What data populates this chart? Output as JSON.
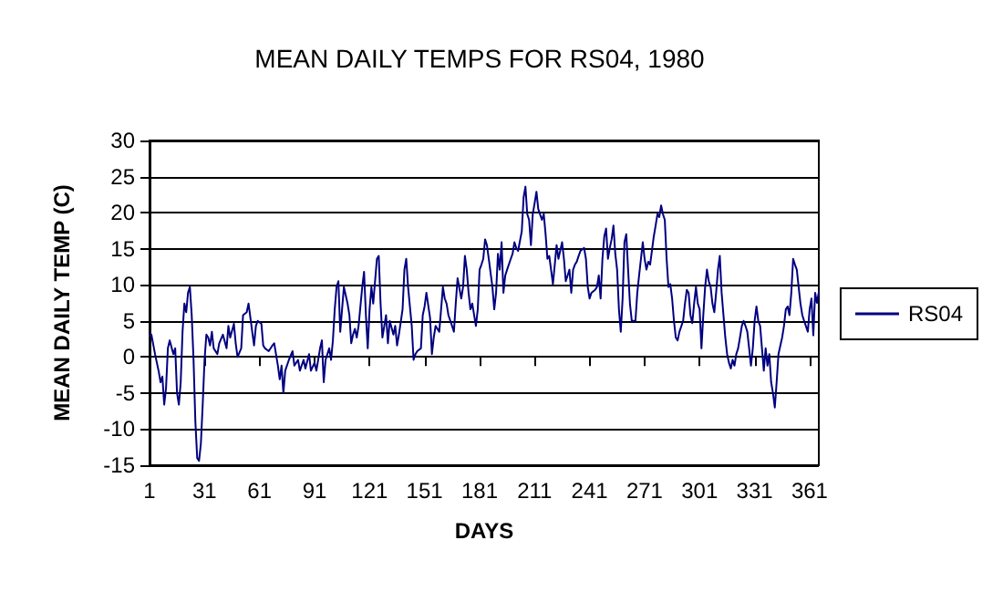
{
  "chart_data": {
    "type": "line",
    "title": "MEAN DAILY TEMPS FOR RS04, 1980",
    "xlabel": "DAYS",
    "ylabel": "MEAN DAILY TEMP (C)",
    "xlim": [
      1,
      366
    ],
    "xticks": [
      1,
      31,
      61,
      91,
      121,
      151,
      181,
      211,
      241,
      271,
      301,
      331,
      361
    ],
    "ylim": [
      -15,
      30
    ],
    "yticks": [
      -15,
      -10,
      -5,
      0,
      5,
      10,
      15,
      20,
      25,
      30
    ],
    "grid": "y",
    "legend": "right",
    "marker": "none",
    "line_style": "solid",
    "series": [
      {
        "name": "RS04",
        "color": "#000080",
        "x": [
          1,
          2,
          4,
          6,
          7,
          8,
          9,
          10,
          11,
          12,
          14,
          15,
          16,
          17,
          18,
          19,
          20,
          21,
          22,
          23,
          24,
          25,
          26,
          27,
          28,
          29,
          30,
          31,
          32,
          33,
          34,
          35,
          36,
          38,
          39,
          41,
          43,
          44,
          45,
          47,
          48,
          49,
          51,
          52,
          54,
          55,
          57,
          58,
          59,
          60,
          62,
          63,
          64,
          66,
          68,
          69,
          71,
          72,
          73,
          74,
          75,
          77,
          79,
          80,
          82,
          83,
          85,
          86,
          88,
          89,
          91,
          92,
          94,
          95,
          96,
          97,
          99,
          100,
          101,
          102,
          103,
          104,
          105,
          107,
          109,
          110,
          111,
          112,
          113,
          114,
          115,
          117,
          118,
          119,
          120,
          121,
          122,
          123,
          125,
          126,
          127,
          128,
          130,
          131,
          132,
          134,
          135,
          136,
          137,
          139,
          140,
          141,
          142,
          144,
          145,
          146,
          147,
          149,
          150,
          151,
          152,
          154,
          155,
          156,
          157,
          159,
          160,
          161,
          162,
          163,
          164,
          166,
          167,
          168,
          169,
          171,
          172,
          173,
          174,
          175,
          176,
          177,
          179,
          180,
          181,
          182,
          183,
          184,
          185,
          186,
          188,
          189,
          190,
          191,
          192,
          193,
          194,
          195,
          196,
          198,
          199,
          200,
          201,
          202,
          204,
          205,
          206,
          207,
          208,
          209,
          210,
          211,
          212,
          213,
          215,
          216,
          217,
          218,
          219,
          221,
          222,
          223,
          224,
          226,
          227,
          228,
          229,
          230,
          231,
          232,
          233,
          234,
          235,
          236,
          238,
          239,
          240,
          241,
          242,
          244,
          245,
          246,
          247,
          248,
          249,
          250,
          251,
          252,
          253,
          254,
          255,
          256,
          257,
          258,
          259,
          260,
          261,
          262,
          263,
          264,
          266,
          267,
          268,
          269,
          270,
          271,
          272,
          273,
          274,
          276,
          277,
          278,
          279,
          280,
          281,
          282,
          283,
          284,
          285,
          286,
          287,
          288,
          289,
          290,
          292,
          293,
          294,
          295,
          296,
          297,
          298,
          299,
          300,
          301,
          302,
          303,
          304,
          305,
          306,
          307,
          308,
          309,
          310,
          311,
          312,
          313,
          314,
          315,
          316,
          317,
          318,
          319,
          320,
          321,
          322,
          323,
          324,
          325,
          326,
          327,
          328,
          329,
          330,
          331,
          332,
          333,
          334,
          335,
          336,
          337,
          338,
          339,
          340,
          341,
          342,
          343,
          344,
          346,
          347,
          348,
          349,
          350,
          351,
          352,
          353,
          354,
          355,
          356,
          357,
          358,
          360,
          361,
          362,
          363,
          364,
          365,
          366
        ],
        "values": [
          2.9,
          3.1,
          0.4,
          -2,
          -3.5,
          -2.7,
          -6.6,
          -4.3,
          1.2,
          2.3,
          0.4,
          1.2,
          -5,
          -6.6,
          -3.5,
          3.5,
          7.4,
          6.2,
          8.9,
          9.7,
          5.8,
          -0.4,
          -9,
          -14,
          -14.4,
          -12,
          -6.6,
          -0.4,
          3.1,
          2.7,
          1.6,
          3.5,
          1.2,
          0.4,
          1.9,
          3.1,
          1.2,
          4.3,
          2.7,
          4.6,
          1.9,
          0,
          1.2,
          5.8,
          6.2,
          7.4,
          3.5,
          1.6,
          4.3,
          5,
          4.6,
          1.6,
          1.2,
          0.8,
          1.6,
          1.9,
          -1.2,
          -3.1,
          -1.2,
          -5,
          -1.9,
          -0.4,
          0.8,
          -1.2,
          -0.4,
          -1.9,
          -0.4,
          -1.6,
          0.4,
          -1.9,
          -0.8,
          -1.9,
          1.2,
          2.3,
          -3.5,
          -0.4,
          1.2,
          -0.4,
          2.3,
          6.6,
          9.7,
          10.5,
          3.5,
          9.7,
          7.4,
          5.8,
          1.9,
          3.1,
          3.9,
          2.7,
          4.3,
          9.7,
          11.8,
          5.8,
          1.2,
          6.6,
          9.7,
          7.4,
          13.6,
          14,
          7.4,
          2.7,
          5.8,
          1.9,
          5,
          3.1,
          4.3,
          1.6,
          3.1,
          6.6,
          12.1,
          13.6,
          9.7,
          4.3,
          -0.4,
          0.4,
          0.8,
          1.2,
          5.8,
          7,
          8.9,
          5.4,
          0.4,
          2.7,
          4.3,
          3.5,
          6.6,
          9.7,
          8.1,
          7.4,
          5.8,
          4.3,
          3.5,
          7.4,
          10.9,
          8.1,
          9.7,
          14,
          12.1,
          8.9,
          6.6,
          7.4,
          4.3,
          6.6,
          12.1,
          12.8,
          13.6,
          16.3,
          15.5,
          13.6,
          9.7,
          6.6,
          8.9,
          14.3,
          12.1,
          15.9,
          8.9,
          11.3,
          12.1,
          13.6,
          14.3,
          15.9,
          15.1,
          14.7,
          17.4,
          22.1,
          23.6,
          19.8,
          19,
          15.5,
          19.8,
          21.3,
          22.9,
          20.5,
          19,
          19.8,
          17,
          13.6,
          14,
          10.1,
          12.8,
          15.5,
          13.6,
          15.9,
          13.6,
          10.5,
          11.3,
          12.1,
          8.9,
          12.1,
          12.8,
          13.2,
          14,
          14.7,
          15.1,
          13.6,
          9.7,
          8.1,
          8.9,
          9.3,
          9.7,
          11.3,
          8.1,
          13.6,
          16.7,
          17.8,
          13.6,
          15.1,
          16.3,
          18.2,
          14.3,
          12.1,
          6.6,
          3.5,
          8.1,
          15.9,
          17,
          12.1,
          7.4,
          5,
          5,
          8.9,
          11.3,
          13.6,
          15.9,
          13.6,
          12.1,
          13.2,
          12.8,
          16.7,
          18.2,
          19.8,
          19.4,
          21,
          19.8,
          19,
          13.6,
          9.7,
          10.1,
          8.1,
          5,
          2.7,
          2.3,
          3.5,
          5,
          7.4,
          9.3,
          8.9,
          5.8,
          4.7,
          7.4,
          9.7,
          7.4,
          6.6,
          1.2,
          5.8,
          9.7,
          12.1,
          10.5,
          9.7,
          7.4,
          6.2,
          8.9,
          12.1,
          14,
          8.9,
          5.8,
          2.7,
          0.4,
          -0.8,
          -1.6,
          -0.4,
          -1.2,
          0.4,
          1.2,
          2.7,
          4.3,
          5,
          4.3,
          3.5,
          1.2,
          -1.2,
          1.2,
          5,
          7,
          5,
          4.3,
          1.2,
          -1.9,
          1.2,
          -1.2,
          0.4,
          -3.5,
          -5,
          -7,
          -3.5,
          0.4,
          2.7,
          4.3,
          6.6,
          7,
          5.8,
          8.9,
          13.6,
          12.8,
          12.1,
          9.7,
          7.4,
          5.8,
          5,
          3.5,
          6.6,
          8.1,
          3,
          8.9,
          7.5,
          9
        ]
      }
    ]
  }
}
